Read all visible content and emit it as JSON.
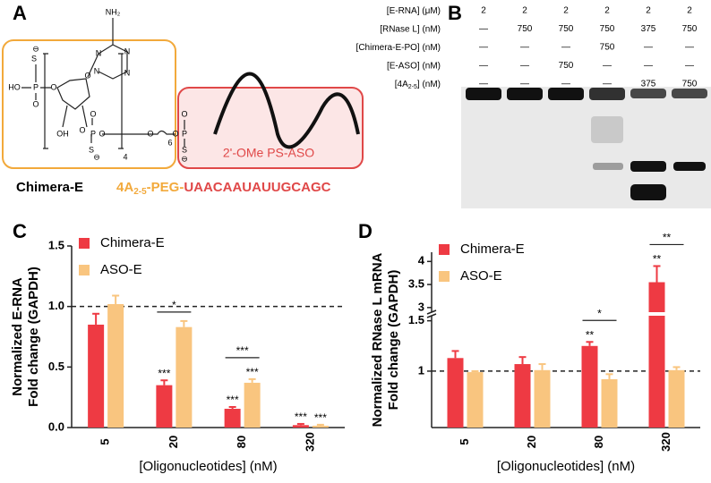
{
  "panel_labels": [
    "A",
    "B",
    "C",
    "D"
  ],
  "panel_a": {
    "structure_atoms": [
      "S",
      "⊖",
      "HO",
      "P",
      "O",
      "O",
      "O",
      "OH",
      "O",
      "P",
      "O",
      "S",
      "⊖",
      "O",
      "N",
      "N",
      "N",
      "N",
      "NH₂",
      "4",
      "O",
      "6",
      "O",
      "P",
      "O",
      "S",
      "⊖"
    ],
    "aso_label": "2'-OMe PS-ASO",
    "name": "Chimera-E",
    "sequence": {
      "prefix": "4A",
      "subscript": "2-5",
      "linker": "-PEG-",
      "aso": "UAACAAUAUUGCAGC"
    }
  },
  "panel_b": {
    "rows": [
      {
        "label": "[E-RNA] (μM)",
        "cells": [
          2,
          2,
          2,
          2,
          2,
          2
        ]
      },
      {
        "label": "[RNase L] (nM)",
        "cells": [
          "—",
          750,
          750,
          750,
          375,
          750
        ]
      },
      {
        "label": "[Chimera-E-PO] (nM)",
        "cells": [
          "—",
          "—",
          "—",
          750,
          "—",
          "—"
        ]
      },
      {
        "label": "[E-ASO] (nM)",
        "cells": [
          "—",
          "—",
          750,
          "—",
          "—",
          "—"
        ]
      },
      {
        "label": "[4A",
        "label_subscript": "2-5",
        "label_suffix": "] (nM)",
        "cells": [
          "—",
          "—",
          "—",
          "—",
          375,
          750
        ]
      }
    ]
  },
  "chart_data": [
    {
      "type": "bar",
      "categories": [
        "5",
        "20",
        "80",
        "320"
      ],
      "xlabel": "[Oligonucleotides] (nM)",
      "ylabel": [
        "Normalized E-RNA",
        "Fold change (GAPDH)"
      ],
      "ylim": [
        0,
        1.5
      ],
      "yticks": [
        {
          "value": 0,
          "label": "0.0"
        },
        0.5,
        {
          "value": 1,
          "label": "1.0"
        },
        1.5
      ],
      "reference_line": 1,
      "legend": "upper left",
      "series": [
        {
          "name": "Chimera-E",
          "color": "#ee3a43",
          "values": [
            0.85,
            0.35,
            0.155,
            0.02
          ],
          "errors": [
            0.09,
            0.04,
            0.015,
            0.01
          ],
          "annotations": [
            null,
            "***",
            "***",
            "***"
          ]
        },
        {
          "name": "ASO-E",
          "color": "#f9c57f",
          "values": [
            1.02,
            0.83,
            0.37,
            0.015
          ],
          "errors": [
            0.07,
            0.05,
            0.03,
            0.008
          ],
          "annotations": [
            null,
            null,
            "***",
            "***"
          ]
        }
      ],
      "brackets": [
        {
          "category": "20",
          "label": "*"
        },
        {
          "category": "80",
          "label": "***"
        }
      ]
    },
    {
      "type": "bar",
      "categories": [
        "5",
        "20",
        "80",
        "320"
      ],
      "xlabel": "[Oligonucleotides] (nM)",
      "ylabel": [
        "Normalized RNase L mRNA",
        "Fold change (GAPDH)"
      ],
      "ylim": [
        0.44,
        4.2
      ],
      "axis_break": [
        1.55,
        2.9
      ],
      "yticks": [
        1,
        1.5,
        3,
        3.5,
        4
      ],
      "reference_line": 1,
      "legend": "upper left",
      "series": [
        {
          "name": "Chimera-E",
          "color": "#ee3a43",
          "values": [
            1.13,
            1.07,
            1.25,
            3.55
          ],
          "errors": [
            0.07,
            0.07,
            0.04,
            0.35
          ],
          "annotations": [
            null,
            null,
            "**",
            "**"
          ]
        },
        {
          "name": "ASO-E",
          "color": "#f9c57f",
          "values": [
            0.99,
            1.01,
            0.92,
            1.01
          ],
          "errors": [
            0.01,
            0.06,
            0.05,
            0.03
          ],
          "annotations": [
            null,
            null,
            null,
            null
          ]
        }
      ],
      "brackets": [
        {
          "category": "80",
          "label": "*"
        },
        {
          "category": "320",
          "label": "**"
        }
      ]
    }
  ]
}
